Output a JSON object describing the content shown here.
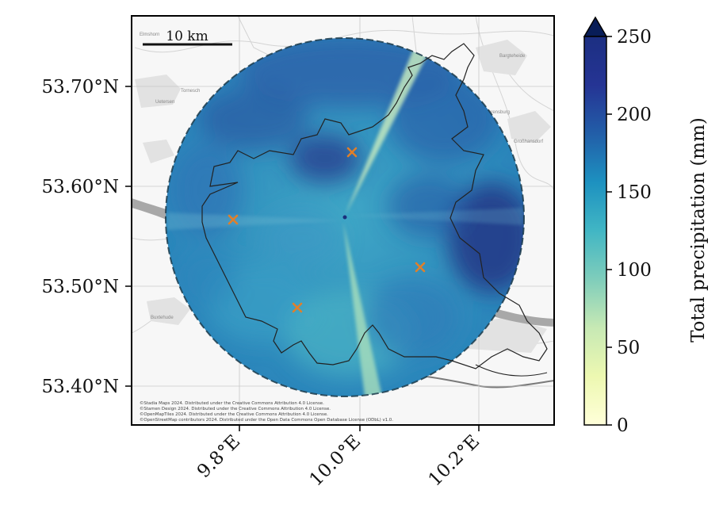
{
  "map": {
    "y_ticks": [
      "53.70°N",
      "53.60°N",
      "53.50°N",
      "53.40°N"
    ],
    "x_ticks": [
      "9.8°E",
      "10.0°E",
      "10.2°E"
    ],
    "scale_bar_label": "10 km",
    "attribution_lines": [
      "©Stadia Maps 2024. Distributed under the Creative Commons Attribution 4.0 License.",
      "©Stamen Design 2024. Distributed under the Creative Commons Attribution 4.0 License.",
      "©OpenMapTiles 2024. Distributed under the Creative Commons Attribution 4.0 License.",
      "©OpenStreetMap contributors 2024. Distributed under the Open Data Commons Open Database License (ODbL) v1.0."
    ],
    "basemap_places": [
      "Elmshorn",
      "Tornesch",
      "Uetersen",
      "Bargteheide",
      "Ahrensburg",
      "Großhansdorf",
      "Buxtehude"
    ],
    "gauge_markers": 4,
    "marker_color": "#e07f2a"
  },
  "colorbar": {
    "label": "Total precipitation (mm)",
    "ticks": [
      "0",
      "50",
      "100",
      "150",
      "200",
      "250"
    ],
    "extend": "max",
    "colormap": "YlGnBu",
    "stops": [
      "#ffffd9",
      "#edf8b1",
      "#c7e9b4",
      "#7fcdbb",
      "#41b6c4",
      "#1d91c0",
      "#225ea8",
      "#253494",
      "#081d58"
    ]
  }
}
